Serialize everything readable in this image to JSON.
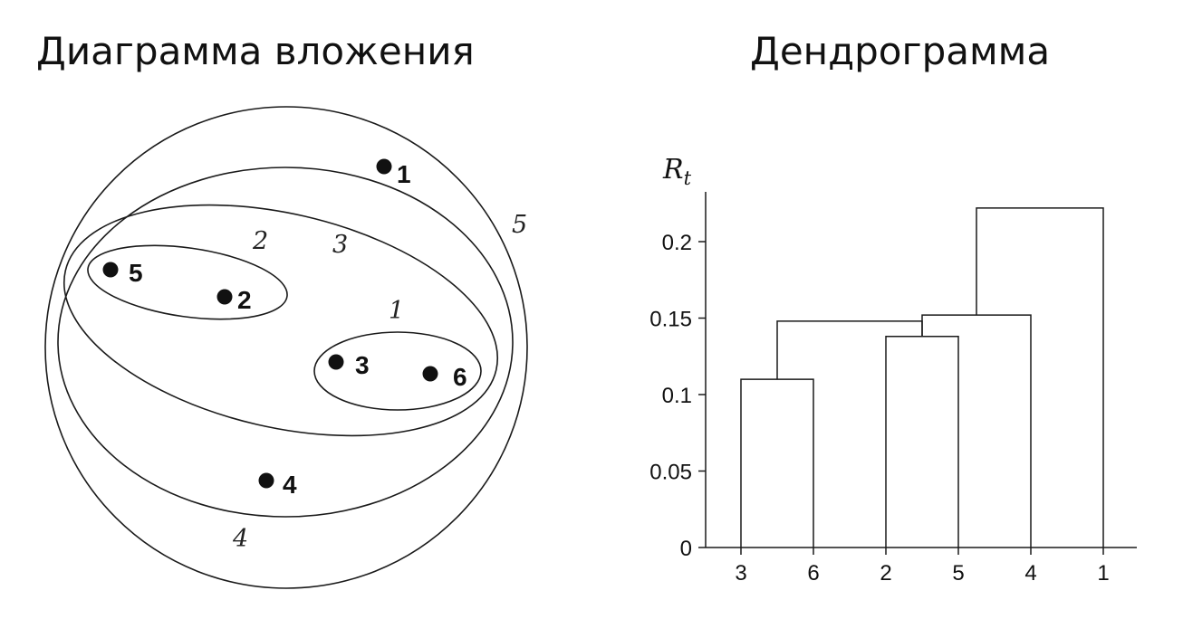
{
  "left_panel": {
    "title": "Диаграмма вложения",
    "points": [
      {
        "label": "1"
      },
      {
        "label": "5"
      },
      {
        "label": "2"
      },
      {
        "label": "3"
      },
      {
        "label": "6"
      },
      {
        "label": "4"
      }
    ],
    "cluster_labels": [
      "1",
      "2",
      "3",
      "4",
      "5"
    ]
  },
  "right_panel": {
    "title": "Дендрограмма",
    "ylabel_main": "R",
    "ylabel_sub": "t"
  },
  "chart_data": {
    "type": "dendrogram",
    "ylabel": "Rt",
    "ylim": [
      0,
      0.235
    ],
    "yticks": [
      "0",
      "0.05",
      "0.1",
      "0.15",
      "0.2"
    ],
    "ytick_values": [
      0,
      0.05,
      0.1,
      0.15,
      0.2
    ],
    "leaf_order": [
      "3",
      "6",
      "2",
      "5",
      "4",
      "1"
    ],
    "merges": [
      {
        "left": "3",
        "right": "6",
        "height": 0.11
      },
      {
        "left": "2",
        "right": "5",
        "height": 0.138
      },
      {
        "left": "(3,6)",
        "right": "(2,5)",
        "height": 0.148
      },
      {
        "left": "(2,5)",
        "right": "4",
        "height": 0.152
      },
      {
        "left": "(2,3,5,6,4)",
        "right": "1",
        "height": 0.222
      }
    ]
  }
}
